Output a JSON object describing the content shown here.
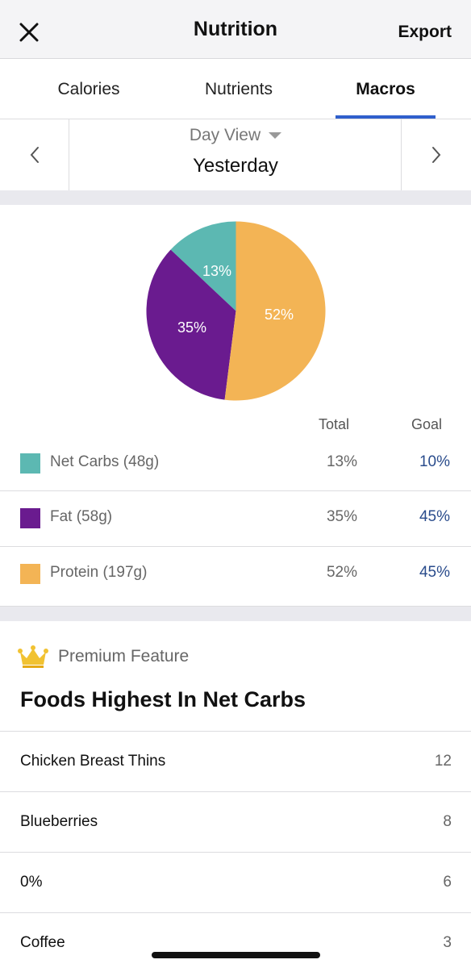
{
  "header": {
    "title": "Nutrition",
    "export_label": "Export"
  },
  "tabs": [
    {
      "label": "Calories",
      "active": false
    },
    {
      "label": "Nutrients",
      "active": false
    },
    {
      "label": "Macros",
      "active": true
    }
  ],
  "day_selector": {
    "view_label": "Day View",
    "date_label": "Yesterday"
  },
  "chart_data": {
    "type": "pie",
    "slices": [
      {
        "label": "Net Carbs",
        "value": 13,
        "color": "#5cb8b2"
      },
      {
        "label": "Fat",
        "value": 35,
        "color": "#6a1b8f"
      },
      {
        "label": "Protein",
        "value": 52,
        "color": "#f3b455"
      }
    ],
    "slice_labels": [
      "13%",
      "35%",
      "52%"
    ]
  },
  "macros_table": {
    "headers": {
      "total": "Total",
      "goal": "Goal"
    },
    "rows": [
      {
        "name": "Net Carbs (48g)",
        "total": "13%",
        "goal": "10%",
        "color": "#5cb8b2"
      },
      {
        "name": "Fat (58g)",
        "total": "35%",
        "goal": "45%",
        "color": "#6a1b8f"
      },
      {
        "name": "Protein (197g)",
        "total": "52%",
        "goal": "45%",
        "color": "#f3b455"
      }
    ]
  },
  "premium": {
    "label": "Premium Feature",
    "icon": "crown-icon"
  },
  "foods": {
    "title": "Foods Highest In Net Carbs",
    "items": [
      {
        "name": "Chicken Breast Thins",
        "value": "12"
      },
      {
        "name": "Blueberries",
        "value": "8"
      },
      {
        "name": "0%",
        "value": "6"
      },
      {
        "name": "Coffee",
        "value": "3"
      }
    ]
  }
}
